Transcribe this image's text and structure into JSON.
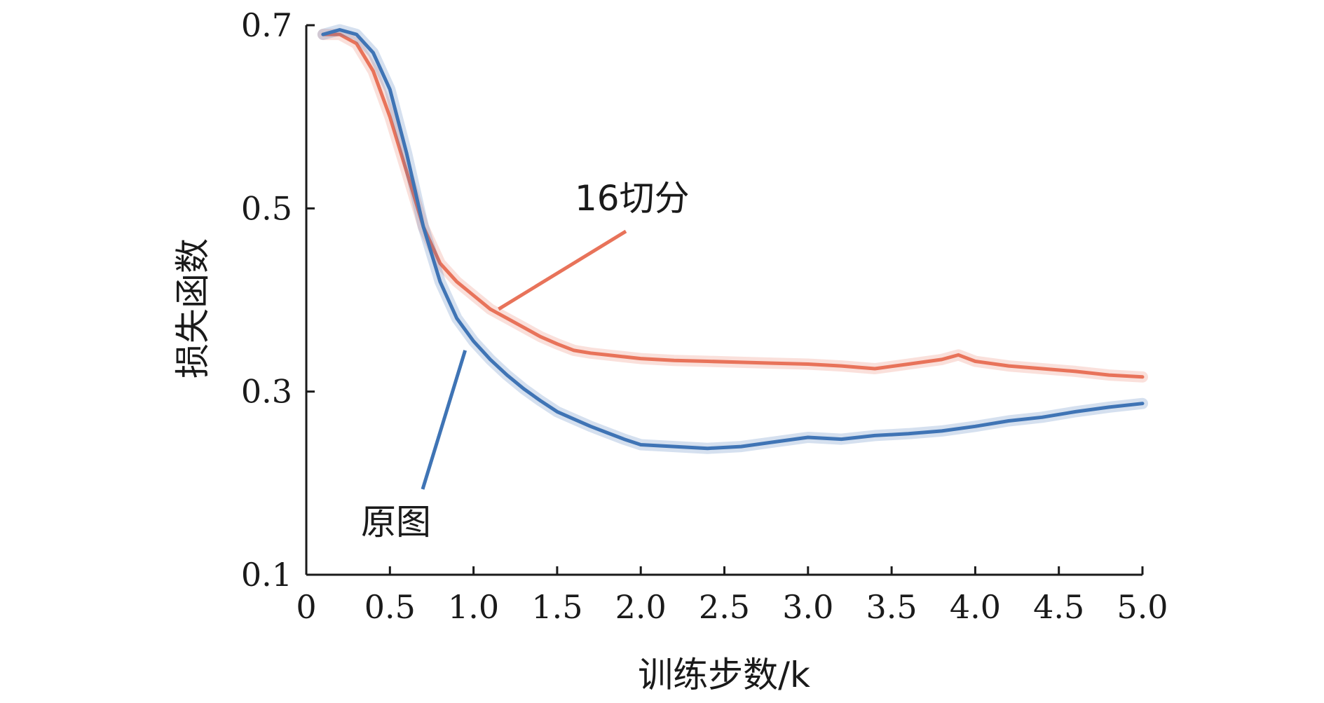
{
  "chart_data": {
    "type": "line",
    "title": "",
    "xlabel": "训练步数/k",
    "ylabel": "损失函数",
    "xlim": [
      0,
      5.0
    ],
    "ylim": [
      0.1,
      0.7
    ],
    "x_ticks": [
      0,
      0.5,
      1.0,
      1.5,
      2.0,
      2.5,
      3.0,
      3.5,
      4.0,
      4.5,
      5.0
    ],
    "x_tick_labels": [
      "0",
      "0.5",
      "1.0",
      "1.5",
      "2.0",
      "2.5",
      "3.0",
      "3.5",
      "4.0",
      "4.5",
      "5.0"
    ],
    "y_ticks": [
      0.1,
      0.3,
      0.5,
      0.7
    ],
    "y_tick_labels": [
      "0.1",
      "0.3",
      "0.5",
      "0.7"
    ],
    "grid": false,
    "legend": "annotations",
    "series": [
      {
        "name": "16切分",
        "color": "#e8735a",
        "x": [
          0.1,
          0.2,
          0.3,
          0.4,
          0.5,
          0.6,
          0.7,
          0.8,
          0.9,
          1.0,
          1.1,
          1.2,
          1.3,
          1.4,
          1.5,
          1.6,
          1.7,
          1.8,
          1.9,
          2.0,
          2.2,
          2.4,
          2.6,
          2.8,
          3.0,
          3.2,
          3.4,
          3.6,
          3.8,
          3.9,
          4.0,
          4.2,
          4.4,
          4.6,
          4.8,
          5.0
        ],
        "y": [
          0.69,
          0.69,
          0.68,
          0.65,
          0.6,
          0.54,
          0.48,
          0.44,
          0.42,
          0.405,
          0.39,
          0.38,
          0.37,
          0.36,
          0.352,
          0.345,
          0.342,
          0.34,
          0.338,
          0.336,
          0.334,
          0.333,
          0.332,
          0.331,
          0.33,
          0.328,
          0.325,
          0.33,
          0.335,
          0.34,
          0.333,
          0.328,
          0.325,
          0.322,
          0.318,
          0.316
        ]
      },
      {
        "name": "原图",
        "color": "#3f74b5",
        "x": [
          0.1,
          0.2,
          0.3,
          0.4,
          0.5,
          0.6,
          0.7,
          0.8,
          0.9,
          1.0,
          1.1,
          1.2,
          1.3,
          1.4,
          1.5,
          1.6,
          1.7,
          1.8,
          1.9,
          2.0,
          2.2,
          2.4,
          2.6,
          2.8,
          3.0,
          3.2,
          3.4,
          3.6,
          3.8,
          4.0,
          4.2,
          4.4,
          4.6,
          4.8,
          5.0
        ],
        "y": [
          0.69,
          0.695,
          0.69,
          0.67,
          0.63,
          0.56,
          0.48,
          0.42,
          0.38,
          0.355,
          0.335,
          0.318,
          0.303,
          0.29,
          0.278,
          0.27,
          0.262,
          0.255,
          0.248,
          0.242,
          0.24,
          0.238,
          0.24,
          0.245,
          0.25,
          0.248,
          0.252,
          0.254,
          0.257,
          0.262,
          0.268,
          0.272,
          0.278,
          0.283,
          0.287
        ]
      }
    ],
    "annotations": [
      {
        "text": "16切分",
        "series": "16切分",
        "color": "#e8735a",
        "x": 1.15,
        "y": 0.39
      },
      {
        "text": "原图",
        "series": "原图",
        "color": "#3f74b5",
        "x": 0.95,
        "y": 0.345
      }
    ]
  }
}
